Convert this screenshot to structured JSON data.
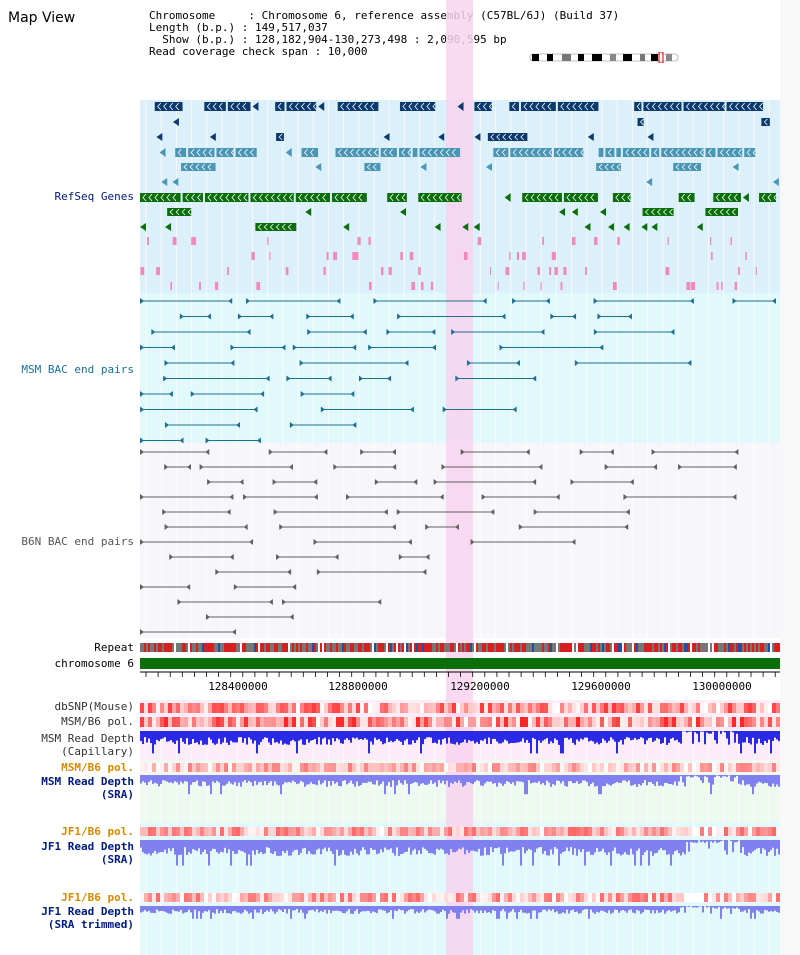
{
  "view": {
    "title": "Map View",
    "chromosome_line": "Chromosome     : Chromosome 6, reference assembly (C57BL/6J) (Build 37)",
    "length_line": "Length (b.p.) : 149,517,037",
    "show_line": "  Show (b.p.) : 128,182,904-130,273,498 : 2,090,595 bp",
    "coverage_line": "Read coverage check span : 10,000"
  },
  "tracks": {
    "refseq": "RefSeq Genes",
    "msm_bac": "MSM BAC end pairs",
    "b6n_bac": "B6N BAC end pairs",
    "repeat": "Repeat",
    "chromosome": "chromosome 6",
    "dbsnp": "dbSNP(Mouse)",
    "msm_b6_pol_1": "MSM/B6 pol.",
    "msm_depth_cap_1": "MSM Read Depth",
    "msm_depth_cap_2": "(Capillary)",
    "msm_b6_pol_2": "MSM/B6 pol.",
    "msm_depth_sra_1": "MSM Read Depth",
    "msm_depth_sra_2": "(SRA)",
    "jf1_b6_pol_1": "JF1/B6 pol.",
    "jf1_depth_sra_1": "JF1 Read Depth",
    "jf1_depth_sra_2": "(SRA)",
    "jf1_b6_pol_2": "JF1/B6 pol.",
    "jf1_depth_trim_1": "JF1 Read Depth",
    "jf1_depth_trim_2": "(SRA trimmed)"
  },
  "axis": {
    "ticks": [
      "128400000",
      "128800000",
      "129200000",
      "129600000",
      "130000000"
    ]
  },
  "colors": {
    "refseq_dark": "#0b3a6e",
    "refseq_mid": "#4a96b4",
    "refseq_green": "#0a6e0a",
    "msm_bac": "#1d6f94",
    "b6n_bac": "#606060",
    "chromosome": "#0a6e0a",
    "highlight": "#f8d4ef",
    "depth_blue": "#2a2ae6",
    "depth_light": "#8080f0",
    "label_navy": "#001a80",
    "label_orange": "#d58a00"
  }
}
